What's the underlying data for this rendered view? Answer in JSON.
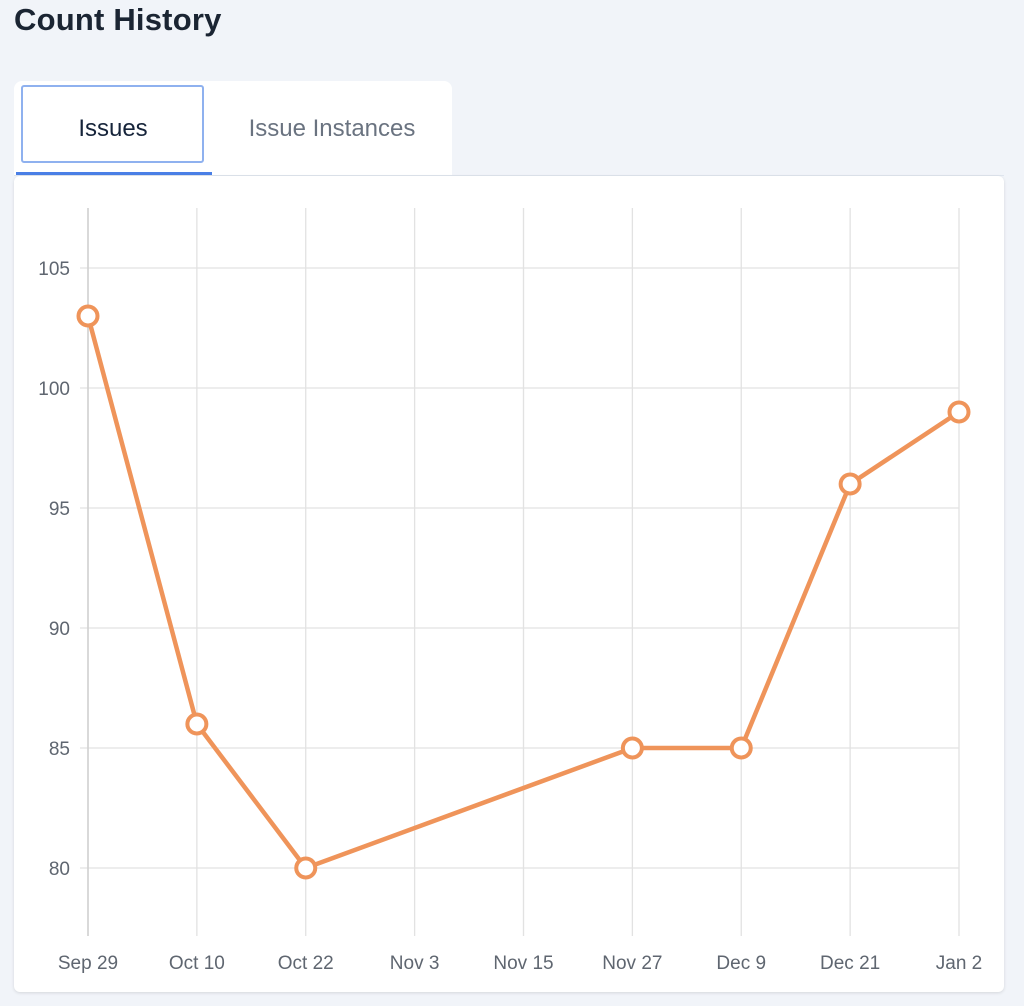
{
  "header": {
    "title": "Count History"
  },
  "tabs": [
    {
      "label": "Issues",
      "active": true
    },
    {
      "label": "Issue Instances",
      "active": false
    }
  ],
  "colors": {
    "line": "#ef945a",
    "accent": "#4a7fe6",
    "grid": "#e2e2e2"
  },
  "chart_data": {
    "type": "line",
    "title": "",
    "xlabel": "",
    "ylabel": "",
    "x_ticks": [
      "Sep 29",
      "Oct 10",
      "Oct 22",
      "Nov 3",
      "Nov 15",
      "Nov 27",
      "Dec 9",
      "Dec 21",
      "Jan 2"
    ],
    "y_ticks": [
      80,
      85,
      90,
      95,
      100,
      105
    ],
    "ylim": [
      77.5,
      107.5
    ],
    "grid": true,
    "series": [
      {
        "points": [
          {
            "x": "Sep 29",
            "y": 103
          },
          {
            "x": "Oct 10",
            "y": 86
          },
          {
            "x": "Oct 22",
            "y": 80
          },
          {
            "x": "Nov 27",
            "y": 85
          },
          {
            "x": "Dec 9",
            "y": 85
          },
          {
            "x": "Dec 21",
            "y": 96
          },
          {
            "x": "Jan 2",
            "y": 99
          }
        ]
      }
    ]
  }
}
